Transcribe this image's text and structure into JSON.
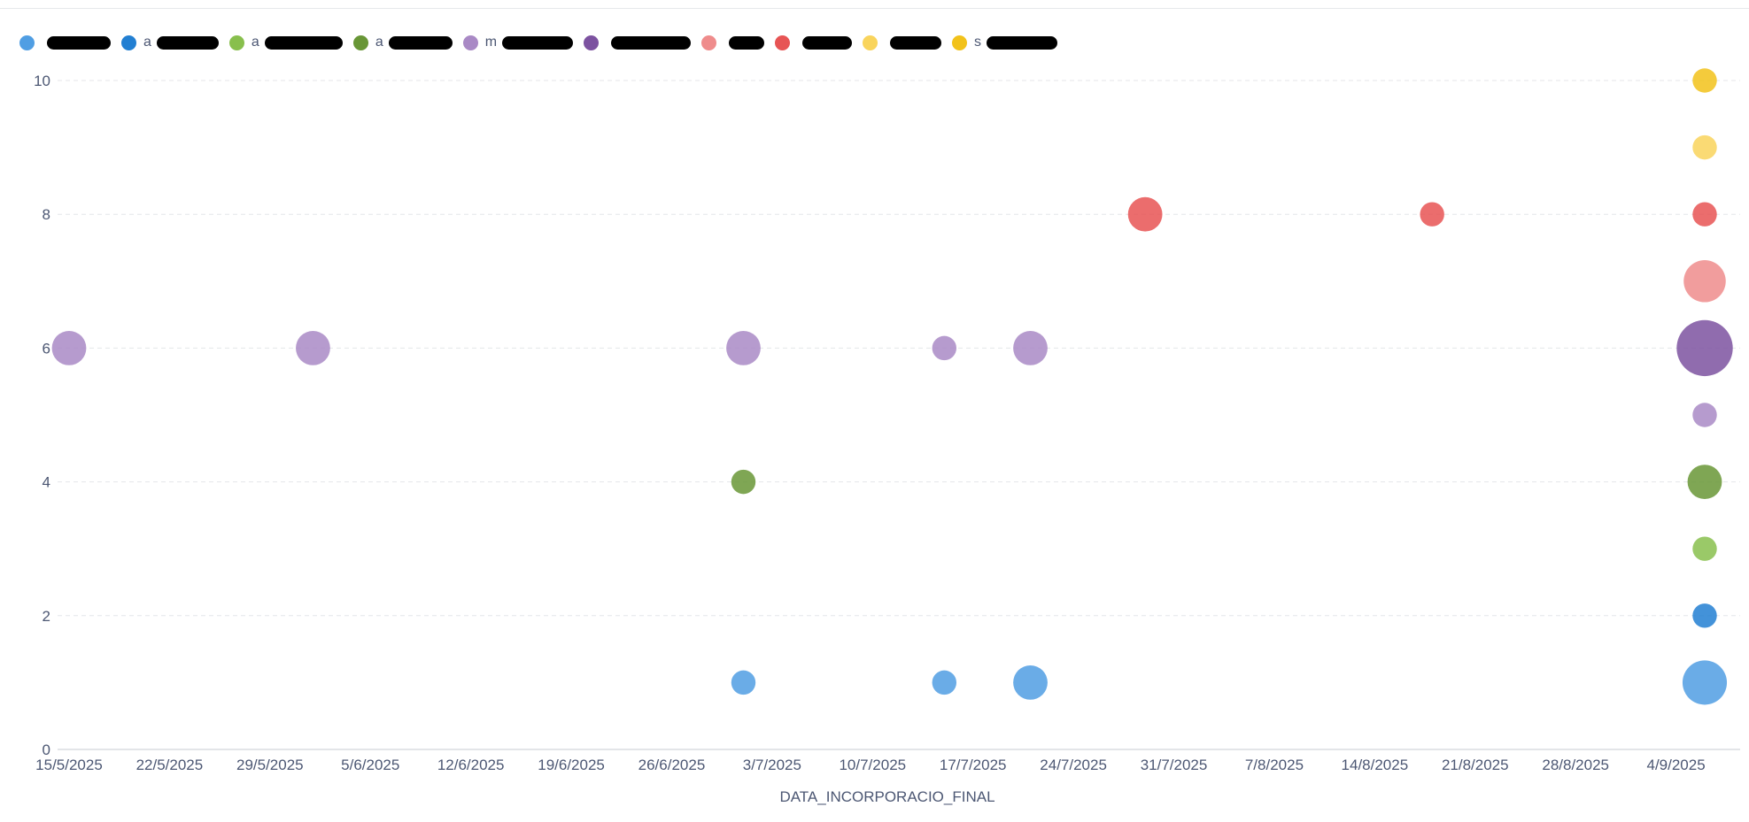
{
  "colors": {
    "s1": "#509ee3",
    "s2": "#227fd2",
    "s3": "#88bf4d",
    "s4": "#689636",
    "s5": "#a989c5",
    "s6": "#7c52a0",
    "s7": "#ef8c8c",
    "s8": "#e75454",
    "s9": "#f9d45c",
    "s10": "#f2c21a",
    "grid": "#e4e6ea",
    "axis": "#c7cbd1",
    "text": "#4c5773"
  },
  "legend": [
    {
      "color": "#509ee3",
      "visible_text": "",
      "redacted": true
    },
    {
      "color": "#227fd2",
      "visible_text": "a",
      "redacted": true
    },
    {
      "color": "#88bf4d",
      "visible_text": "a",
      "redacted": true
    },
    {
      "color": "#689636",
      "visible_text": "a",
      "redacted": true
    },
    {
      "color": "#a989c5",
      "visible_text": "m",
      "redacted": true
    },
    {
      "color": "#7c52a0",
      "visible_text": "",
      "redacted": true
    },
    {
      "color": "#ef8c8c",
      "visible_text": "",
      "redacted": true
    },
    {
      "color": "#e75454",
      "visible_text": "",
      "redacted": true
    },
    {
      "color": "#f9d45c",
      "visible_text": "",
      "redacted": true
    },
    {
      "color": "#f2c21a",
      "visible_text": "s",
      "redacted": true
    }
  ],
  "chart_data": {
    "type": "scatter",
    "bubble": true,
    "title": "",
    "xlabel": "DATA_INCORPORACIO_FINAL",
    "ylabel": "",
    "x_tick_labels": [
      "15/5/2025",
      "22/5/2025",
      "29/5/2025",
      "5/6/2025",
      "12/6/2025",
      "19/6/2025",
      "26/6/2025",
      "3/7/2025",
      "10/7/2025",
      "17/7/2025",
      "24/7/2025",
      "31/7/2025",
      "7/8/2025",
      "14/8/2025",
      "21/8/2025",
      "28/8/2025",
      "4/9/2025"
    ],
    "y_tick_labels": [
      "0",
      "2",
      "4",
      "6",
      "8",
      "10"
    ],
    "ylim": [
      0,
      10
    ],
    "xlim": [
      "2025-05-15",
      "2025-09-06"
    ],
    "grid": true,
    "legend_position": "top-left",
    "points": [
      {
        "x": "2025-05-15",
        "y": 6,
        "size": 3,
        "color": "#a989c5"
      },
      {
        "x": "2025-06-01",
        "y": 6,
        "size": 3,
        "color": "#a989c5"
      },
      {
        "x": "2025-07-01",
        "y": 6,
        "size": 3,
        "color": "#a989c5"
      },
      {
        "x": "2025-07-01",
        "y": 4,
        "size": 1.5,
        "color": "#689636"
      },
      {
        "x": "2025-07-01",
        "y": 1,
        "size": 1.5,
        "color": "#509ee3"
      },
      {
        "x": "2025-07-15",
        "y": 6,
        "size": 1.5,
        "color": "#a989c5"
      },
      {
        "x": "2025-07-15",
        "y": 1,
        "size": 1.5,
        "color": "#509ee3"
      },
      {
        "x": "2025-07-21",
        "y": 6,
        "size": 3,
        "color": "#a989c5"
      },
      {
        "x": "2025-07-21",
        "y": 1,
        "size": 3,
        "color": "#509ee3"
      },
      {
        "x": "2025-07-29",
        "y": 8,
        "size": 3,
        "color": "#e75454"
      },
      {
        "x": "2025-08-18",
        "y": 8,
        "size": 1.5,
        "color": "#e75454"
      },
      {
        "x": "2025-09-06",
        "y": 10,
        "size": 1.5,
        "color": "#f2c21a"
      },
      {
        "x": "2025-09-06",
        "y": 9,
        "size": 1.5,
        "color": "#f9d45c"
      },
      {
        "x": "2025-09-06",
        "y": 8,
        "size": 1.5,
        "color": "#e75454"
      },
      {
        "x": "2025-09-06",
        "y": 7,
        "size": 4.5,
        "color": "#ef8c8c"
      },
      {
        "x": "2025-09-06",
        "y": 6,
        "size": 8,
        "color": "#7c52a0"
      },
      {
        "x": "2025-09-06",
        "y": 5,
        "size": 1.5,
        "color": "#a989c5"
      },
      {
        "x": "2025-09-06",
        "y": 4,
        "size": 3,
        "color": "#689636"
      },
      {
        "x": "2025-09-06",
        "y": 3,
        "size": 1.5,
        "color": "#88bf4d"
      },
      {
        "x": "2025-09-06",
        "y": 2,
        "size": 1.5,
        "color": "#227fd2"
      },
      {
        "x": "2025-09-06",
        "y": 1,
        "size": 5,
        "color": "#509ee3"
      }
    ]
  }
}
